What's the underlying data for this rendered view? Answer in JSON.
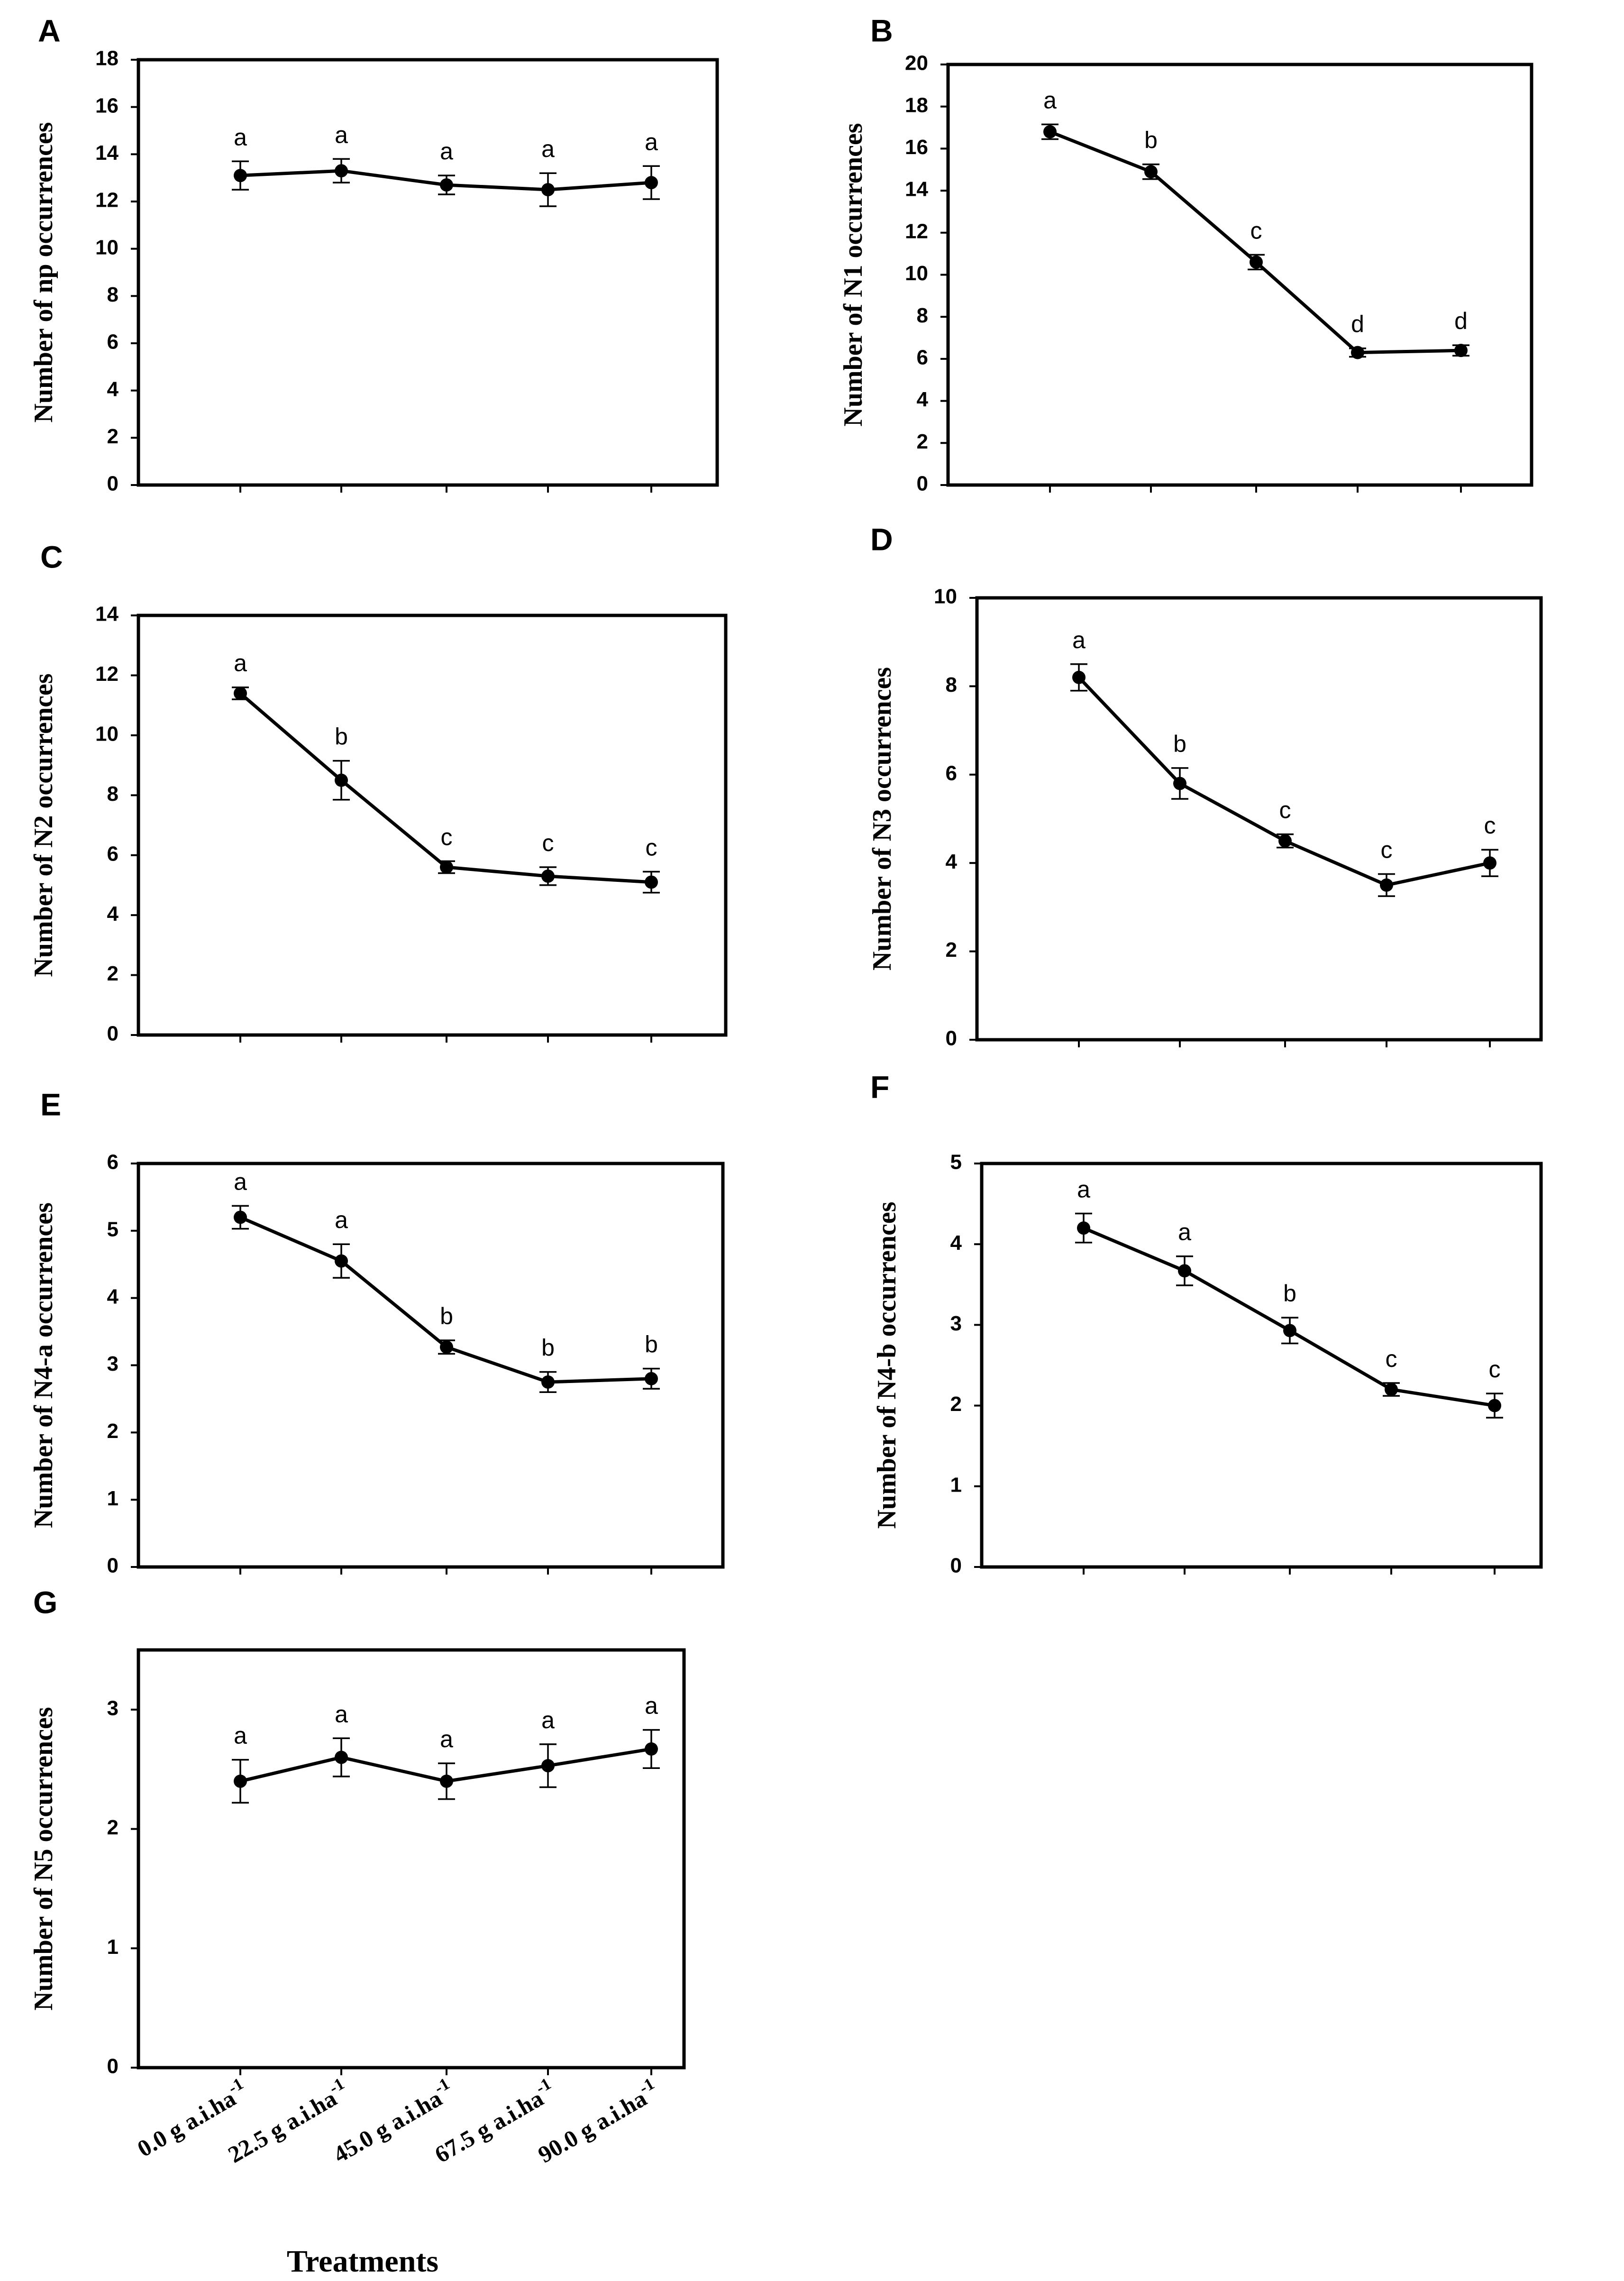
{
  "figure": {
    "x_categories": [
      "0.0 g a.i.ha-1",
      "22.5 g a.i.ha-1",
      "45.0 g a.i.ha-1",
      "67.5 g a.i.ha-1",
      "90.0 g a.i.ha-1"
    ],
    "x_tick_base": [
      "0.0 g a.i.ha",
      "22.5 g a.i.ha",
      "45.0 g a.i.ha",
      "67.5 g a.i.ha",
      "90.0 g a.i.ha"
    ],
    "x_tick_sup": "-1",
    "xlabel": "Treatments",
    "line_color": "#000000",
    "background": "#ffffff"
  },
  "chart_data": [
    {
      "panel": "A",
      "type": "line",
      "ylabel": "Number of np occurrences",
      "ylim": [
        0,
        18
      ],
      "yticks": [
        0,
        2,
        4,
        6,
        8,
        10,
        12,
        14,
        16,
        18
      ],
      "values": [
        13.1,
        13.3,
        12.7,
        12.5,
        12.8
      ],
      "errors": [
        0.6,
        0.5,
        0.4,
        0.7,
        0.7
      ],
      "letters": [
        "a",
        "a",
        "a",
        "a",
        "a"
      ]
    },
    {
      "panel": "B",
      "type": "line",
      "ylabel": "Number of N1 occurrences",
      "ylim": [
        0,
        20
      ],
      "yticks": [
        0,
        2,
        4,
        6,
        8,
        10,
        12,
        14,
        16,
        18,
        20
      ],
      "values": [
        16.8,
        14.9,
        10.6,
        6.3,
        6.4
      ],
      "errors": [
        0.35,
        0.35,
        0.35,
        0.2,
        0.25
      ],
      "letters": [
        "a",
        "b",
        "c",
        "d",
        "d"
      ]
    },
    {
      "panel": "C",
      "type": "line",
      "ylabel": "Number of N2 occurrences",
      "ylim": [
        0,
        14
      ],
      "yticks": [
        0,
        2,
        4,
        6,
        8,
        10,
        12,
        14
      ],
      "values": [
        11.4,
        8.5,
        5.6,
        5.3,
        5.1
      ],
      "errors": [
        0.2,
        0.65,
        0.2,
        0.3,
        0.35
      ],
      "letters": [
        "a",
        "b",
        "c",
        "c",
        "c"
      ]
    },
    {
      "panel": "D",
      "type": "line",
      "ylabel": "Number of N3 occurrences",
      "ylim": [
        0,
        10
      ],
      "yticks": [
        0,
        2,
        4,
        6,
        8,
        10
      ],
      "values": [
        8.2,
        5.8,
        4.5,
        3.5,
        4.0
      ],
      "errors": [
        0.3,
        0.35,
        0.15,
        0.25,
        0.3
      ],
      "letters": [
        "a",
        "b",
        "c",
        "c",
        "c"
      ]
    },
    {
      "panel": "E",
      "type": "line",
      "ylabel": "Number of N4-a occurrences",
      "ylim": [
        0,
        6
      ],
      "yticks": [
        0,
        1,
        2,
        3,
        4,
        5,
        6
      ],
      "values": [
        5.2,
        4.55,
        3.27,
        2.75,
        2.8
      ],
      "errors": [
        0.17,
        0.25,
        0.1,
        0.15,
        0.15
      ],
      "letters": [
        "a",
        "a",
        "b",
        "b",
        "b"
      ]
    },
    {
      "panel": "F",
      "type": "line",
      "ylabel": "Number of N4-b occurrences",
      "ylim": [
        0,
        5
      ],
      "yticks": [
        0,
        1,
        2,
        3,
        4,
        5
      ],
      "values": [
        4.2,
        3.67,
        2.93,
        2.2,
        2.0
      ],
      "errors": [
        0.18,
        0.18,
        0.16,
        0.08,
        0.15
      ],
      "letters": [
        "a",
        "a",
        "b",
        "c",
        "c"
      ]
    },
    {
      "panel": "G",
      "type": "line",
      "ylabel": "Number of N5 occurrences",
      "ylim": [
        0,
        3.5
      ],
      "yticks": [
        0,
        1,
        2,
        3
      ],
      "values": [
        2.4,
        2.6,
        2.4,
        2.53,
        2.67
      ],
      "errors": [
        0.18,
        0.16,
        0.15,
        0.18,
        0.16
      ],
      "letters": [
        "a",
        "a",
        "a",
        "a",
        "a"
      ]
    }
  ]
}
